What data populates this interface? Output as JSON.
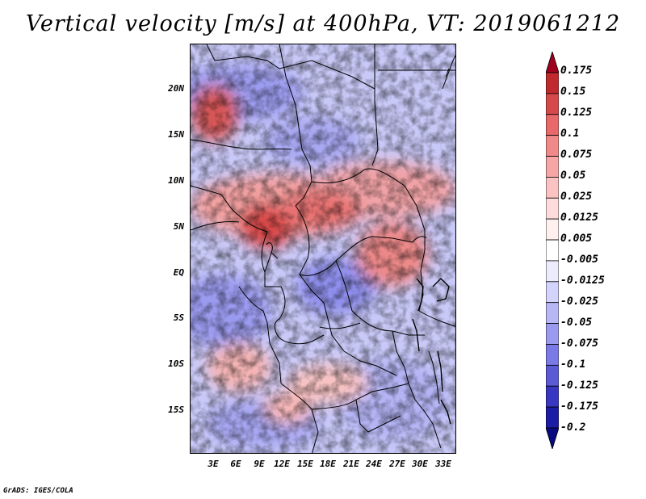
{
  "title": "Vertical velocity [m/s] at 400hPa, VT: 2019061212",
  "credit": "GrADS: IGES/COLA",
  "lat_labels": [
    "20N",
    "15N",
    "10N",
    "5N",
    "EQ",
    "5S",
    "10S",
    "15S"
  ],
  "lon_labels": [
    "3E",
    "6E",
    "9E",
    "12E",
    "15E",
    "18E",
    "21E",
    "24E",
    "27E",
    "30E",
    "33E"
  ],
  "colorbar": {
    "levels": [
      "0.175",
      "0.15",
      "0.125",
      "0.1",
      "0.075",
      "0.05",
      "0.025",
      "0.0125",
      "0.005",
      "-0.005",
      "-0.0125",
      "-0.025",
      "-0.05",
      "-0.075",
      "-0.1",
      "-0.125",
      "-0.175",
      "-0.2"
    ],
    "colors": [
      "#a0001e",
      "#c02a2f",
      "#d6494a",
      "#e8696a",
      "#f08a89",
      "#f6a6a5",
      "#fac3c2",
      "#fddcdb",
      "#fff0f0",
      "#ffffff",
      "#ececfd",
      "#d3d3fb",
      "#b7b7f6",
      "#9a9aef",
      "#7a7ae6",
      "#5a5ad6",
      "#3737c2",
      "#1c1ca5",
      "#0a0a80"
    ]
  }
}
